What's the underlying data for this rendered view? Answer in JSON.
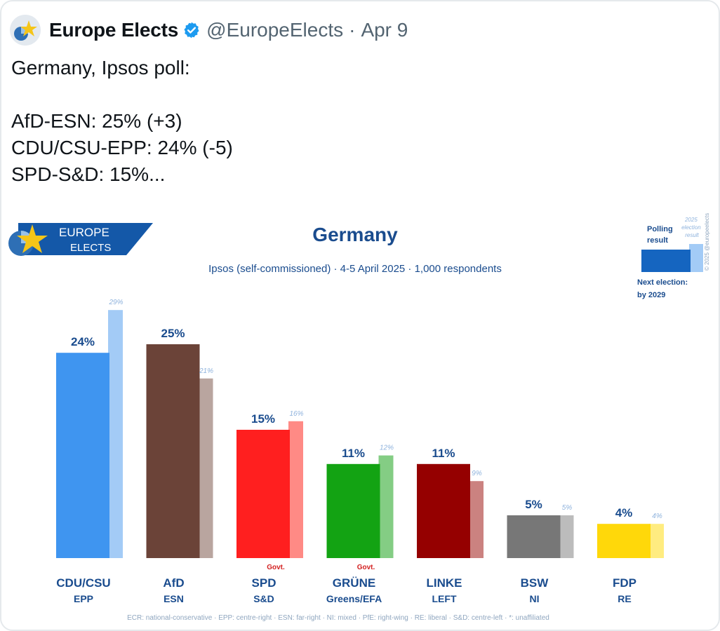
{
  "tweet": {
    "author": "Europe Elects",
    "handle": "@EuropeElects",
    "separator": "·",
    "date": "Apr 9",
    "lines": [
      "Germany, Ipsos poll:",
      "",
      "AfD-ESN: 25% (+3)",
      "CDU/CSU-EPP: 24% (-5)",
      "SPD-S&D: 15%..."
    ]
  },
  "colors": {
    "title": "#1a4c8e",
    "europe_elects_banner": "#1458a8"
  },
  "logo": {
    "text_top": "EUROPE",
    "text_bottom": "ELECTS"
  },
  "chart_data": {
    "type": "bar",
    "title": "Germany",
    "subtitle": "Ipsos (self-commissioned) · 4-5 April 2025 · 1,000 respondents",
    "ylim": [
      0,
      30
    ],
    "grid": false,
    "categories": [
      {
        "party": "CDU/CSU",
        "group": "EPP",
        "poll": 24,
        "election": 29,
        "poll_label": "24%",
        "election_label": "29%",
        "govt": "",
        "color": "#3f95f0",
        "color_light": "#a3cbf6"
      },
      {
        "party": "AfD",
        "group": "ESN",
        "poll": 25,
        "election": 21,
        "poll_label": "25%",
        "election_label": "21%",
        "govt": "",
        "color": "#6b4338",
        "color_light": "#b9a59f"
      },
      {
        "party": "SPD",
        "group": "S&D",
        "poll": 15,
        "election": 16,
        "poll_label": "15%",
        "election_label": "16%",
        "govt": "Govt.",
        "color": "#ff1f1f",
        "color_light": "#ff8a85"
      },
      {
        "party": "GRÜNE",
        "group": "Greens/EFA",
        "poll": 11,
        "election": 12,
        "poll_label": "11%",
        "election_label": "12%",
        "govt": "Govt.",
        "color": "#13a313",
        "color_light": "#84cd84"
      },
      {
        "party": "LINKE",
        "group": "LEFT",
        "poll": 11,
        "election": 9,
        "poll_label": "11%",
        "election_label": "9%",
        "govt": "",
        "color": "#950000",
        "color_light": "#cb8280"
      },
      {
        "party": "BSW",
        "group": "NI",
        "poll": 5,
        "election": 5,
        "poll_label": "5%",
        "election_label": "5%",
        "govt": "",
        "color": "#777777",
        "color_light": "#bcbcbc"
      },
      {
        "party": "FDP",
        "group": "RE",
        "poll": 4,
        "election": 4,
        "poll_label": "4%",
        "election_label": "4%",
        "govt": "",
        "color": "#ffd80a",
        "color_light": "#ffec80"
      }
    ],
    "legend": {
      "polling": "Polling result",
      "election": "2025 election result",
      "next_election": "Next election:",
      "next_election_date": "by 2029",
      "copyright": "© 2025 @europeelects",
      "position": "top-right"
    },
    "footnote": "ECR: national-conservative · EPP: centre-right · ESN: far-right · NI: mixed · PfE: right-wing · RE: liberal · S&D: centre-left · *: unaffiliated"
  }
}
